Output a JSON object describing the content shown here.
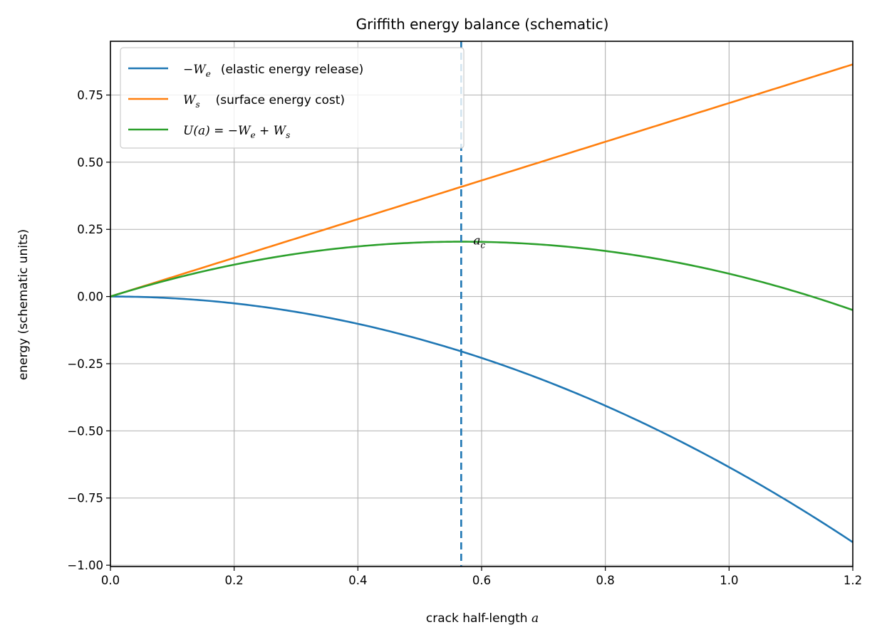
{
  "chart_data": {
    "type": "line",
    "title": "Griffith energy balance (schematic)",
    "xlabel": "crack half-length",
    "xlabel_var": "a",
    "ylabel": "energy (schematic units)",
    "xlim": [
      0.0,
      1.2
    ],
    "ylim": [
      -1.005,
      0.95
    ],
    "grid": true,
    "legend_position": "top-left",
    "x_ticks": [
      0.0,
      0.2,
      0.4,
      0.6,
      0.8,
      1.0,
      1.2
    ],
    "x_tick_labels": [
      "0.0",
      "0.2",
      "0.4",
      "0.6",
      "0.8",
      "1.0",
      "1.2"
    ],
    "y_ticks": [
      -1.0,
      -0.75,
      -0.5,
      -0.25,
      0.0,
      0.25,
      0.5,
      0.75
    ],
    "y_tick_labels": [
      "−1.00",
      "−0.75",
      "−0.50",
      "−0.25",
      "0.00",
      "0.25",
      "0.50",
      "0.75"
    ],
    "series": [
      {
        "name": "-W_e (elastic energy release)",
        "legend_math": "−W",
        "legend_sub": "e",
        "legend_text": "(elastic energy release)",
        "color": "#1f77b4",
        "formula": "-0.635*a^2",
        "x": [
          0.0,
          0.1,
          0.2,
          0.3,
          0.4,
          0.5,
          0.6,
          0.7,
          0.8,
          0.9,
          1.0,
          1.1,
          1.2
        ],
        "y": [
          0.0,
          -0.006,
          -0.025,
          -0.057,
          -0.102,
          -0.159,
          -0.229,
          -0.311,
          -0.406,
          -0.514,
          -0.635,
          -0.768,
          -0.914
        ]
      },
      {
        "name": "W_s (surface energy cost)",
        "legend_math": "W",
        "legend_sub": "s",
        "legend_text": "(surface energy cost)",
        "color": "#ff7f0e",
        "formula": "0.72*a",
        "x": [
          0.0,
          0.1,
          0.2,
          0.3,
          0.4,
          0.5,
          0.6,
          0.7,
          0.8,
          0.9,
          1.0,
          1.1,
          1.2
        ],
        "y": [
          0.0,
          0.072,
          0.144,
          0.216,
          0.288,
          0.36,
          0.432,
          0.504,
          0.576,
          0.648,
          0.72,
          0.792,
          0.864
        ]
      },
      {
        "name": "U(a) = -W_e + W_s",
        "legend_math": "U(a) = −W",
        "legend_sub": "e",
        "legend_tail": " + W",
        "legend_sub2": "s",
        "color": "#2ca02c",
        "formula": "0.72*a - 0.635*a^2",
        "x": [
          0.0,
          0.1,
          0.2,
          0.3,
          0.4,
          0.5,
          0.6,
          0.7,
          0.8,
          0.9,
          1.0,
          1.1,
          1.2
        ],
        "y": [
          0.0,
          0.066,
          0.119,
          0.159,
          0.186,
          0.201,
          0.203,
          0.193,
          0.17,
          0.134,
          0.085,
          0.024,
          -0.05
        ]
      }
    ],
    "annotations": [
      {
        "type": "vline",
        "x": 0.567,
        "style": "dashed",
        "color": "#1f77b4",
        "label": "a",
        "label_sub": "c",
        "label_y": 0.22
      }
    ]
  }
}
